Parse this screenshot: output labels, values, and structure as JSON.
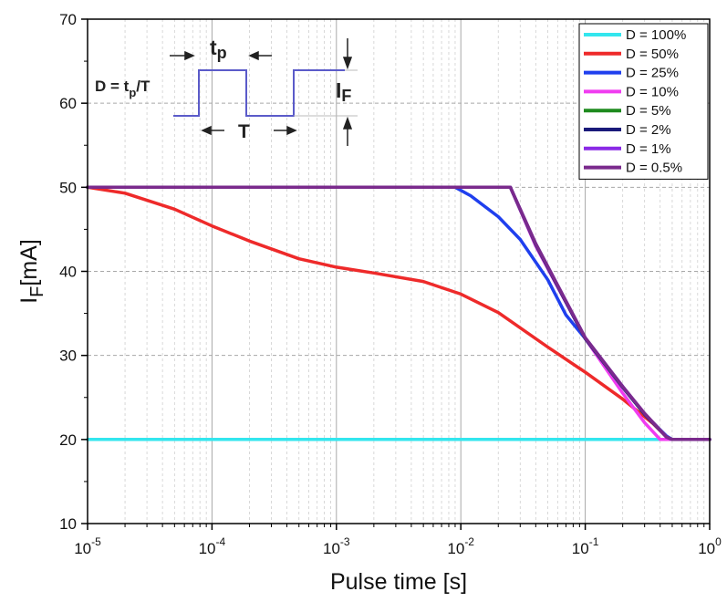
{
  "chart_data": {
    "type": "line",
    "title": "",
    "xlabel": "Pulse time [s]",
    "ylabel": {
      "main": "I",
      "sub": "F",
      "unit": "[mA]"
    },
    "x_scale": "log",
    "xlim": [
      1e-05,
      1
    ],
    "ylim": [
      10,
      70
    ],
    "x_ticks": [
      {
        "value": 1e-05,
        "base": "10",
        "exp": "-5"
      },
      {
        "value": 0.0001,
        "base": "10",
        "exp": "-4"
      },
      {
        "value": 0.001,
        "base": "10",
        "exp": "-3"
      },
      {
        "value": 0.01,
        "base": "10",
        "exp": "-2"
      },
      {
        "value": 0.1,
        "base": "10",
        "exp": "-1"
      },
      {
        "value": 1,
        "base": "10",
        "exp": "0"
      }
    ],
    "y_ticks": [
      "10",
      "20",
      "30",
      "40",
      "50",
      "60",
      "70"
    ],
    "grid": true,
    "legend_position": "top-right",
    "series": [
      {
        "name": "D = 100%",
        "color": "#33e6ee",
        "x": [
          1e-05,
          1
        ],
        "y": [
          20,
          20
        ]
      },
      {
        "name": "D = 50%",
        "color": "#ee2a2a",
        "x": [
          1e-05,
          2e-05,
          5e-05,
          0.0001,
          0.0002,
          0.0005,
          0.001,
          0.002,
          0.005,
          0.01,
          0.02,
          0.05,
          0.1,
          0.2,
          0.35,
          0.45,
          0.5,
          1
        ],
        "y": [
          50,
          49.3,
          47.4,
          45.4,
          43.6,
          41.5,
          40.5,
          39.8,
          38.8,
          37.3,
          35.1,
          31.0,
          28.0,
          24.8,
          21.9,
          20.3,
          20,
          20
        ]
      },
      {
        "name": "D = 25%",
        "color": "#1f3fee",
        "x": [
          1e-05,
          0.009,
          0.012,
          0.02,
          0.03,
          0.05,
          0.07,
          0.1,
          0.2,
          0.3,
          0.45,
          0.5,
          1
        ],
        "y": [
          50,
          50,
          49.0,
          46.5,
          43.8,
          39.0,
          34.8,
          32.0,
          26.3,
          23.0,
          20.4,
          20,
          20
        ]
      },
      {
        "name": "D = 10%",
        "color": "#f03cf0",
        "x": [
          1e-05,
          0.025,
          0.04,
          0.1,
          0.2,
          0.3,
          0.4,
          1
        ],
        "y": [
          50,
          50,
          43.0,
          32.0,
          25.5,
          22.0,
          20,
          20
        ]
      },
      {
        "name": "D = 5%",
        "color": "#1e8a1e",
        "x": [
          1e-05,
          0.025,
          0.04,
          0.1,
          0.2,
          0.3,
          0.45,
          0.5,
          1
        ],
        "y": [
          50,
          50,
          43.2,
          32.0,
          26.2,
          23.0,
          20.3,
          20,
          20
        ]
      },
      {
        "name": "D = 2%",
        "color": "#1a1a7a",
        "x": [
          1e-05,
          0.025,
          0.04,
          0.1,
          0.2,
          0.3,
          0.45,
          0.5,
          1
        ],
        "y": [
          50,
          50,
          43.2,
          32.0,
          26.2,
          23.0,
          20.3,
          20,
          20
        ]
      },
      {
        "name": "D = 1%",
        "color": "#8a2ae6",
        "x": [
          1e-05,
          0.025,
          0.04,
          0.1,
          0.2,
          0.3,
          0.45,
          0.5,
          1
        ],
        "y": [
          50,
          50,
          43.3,
          32.1,
          26.3,
          23.1,
          20.3,
          20,
          20
        ]
      },
      {
        "name": "D = 0.5%",
        "color": "#7a2a8c",
        "x": [
          1e-05,
          0.025,
          0.04,
          0.1,
          0.2,
          0.3,
          0.45,
          0.5,
          1
        ],
        "y": [
          50,
          50,
          43.3,
          32.1,
          26.3,
          23.1,
          20.3,
          20,
          20
        ]
      }
    ],
    "inset": {
      "formula": {
        "lhs": "D = t",
        "lhs_sub": "p",
        "rhs": "/T"
      },
      "tp_label": {
        "main": "t",
        "sub": "p"
      },
      "period_label": "T",
      "amplitude_label": {
        "main": "I",
        "sub": "F"
      }
    }
  }
}
